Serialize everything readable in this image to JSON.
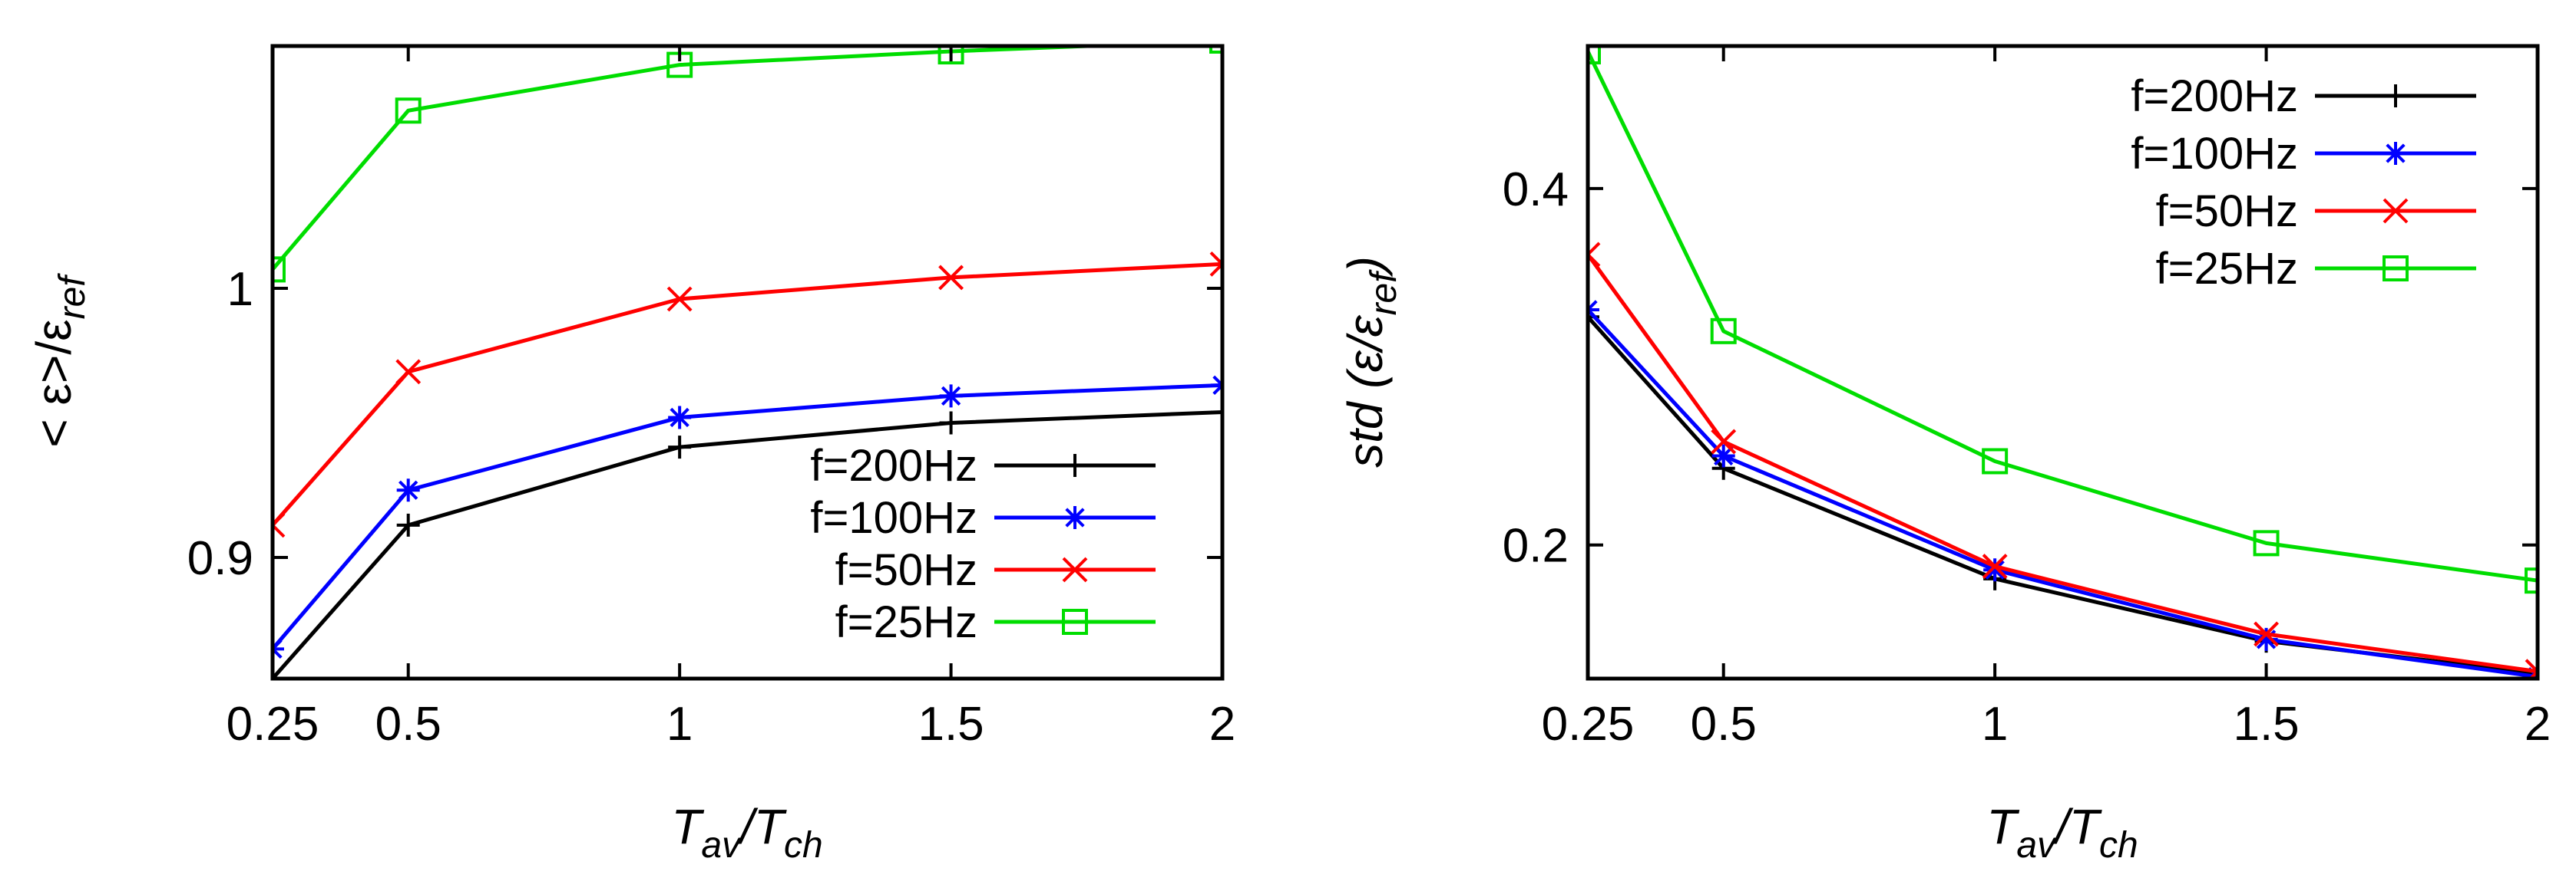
{
  "chart_data": [
    {
      "type": "line",
      "xlabel_main": "T",
      "xlabel_sub1": "av",
      "xlabel_mid": "/T",
      "xlabel_sub2": "ch",
      "ylabel_main": "< ε>/ε",
      "ylabel_sub": "ref",
      "xlim": [
        0.25,
        2
      ],
      "ylim": [
        0.855,
        1.09
      ],
      "xticks": [
        0.25,
        0.5,
        1,
        1.5,
        2
      ],
      "xtick_labels": [
        "0.25",
        "0.5",
        "1",
        "1.5",
        "2"
      ],
      "yticks": [
        0.9,
        1
      ],
      "ytick_labels": [
        "0.9",
        "1"
      ],
      "legend_position": "bottom-right",
      "series": [
        {
          "name": "f=200Hz",
          "color": "#000000",
          "marker": "plus",
          "x": [
            0.25,
            0.5,
            1,
            1.5,
            2
          ],
          "y": [
            0.855,
            0.912,
            0.941,
            0.95,
            0.954
          ]
        },
        {
          "name": "f=100Hz",
          "color": "#0000ff",
          "marker": "star",
          "x": [
            0.25,
            0.5,
            1,
            1.5,
            2
          ],
          "y": [
            0.866,
            0.925,
            0.952,
            0.96,
            0.964
          ]
        },
        {
          "name": "f=50Hz",
          "color": "#ff0000",
          "marker": "cross",
          "x": [
            0.25,
            0.5,
            1,
            1.5,
            2
          ],
          "y": [
            0.912,
            0.969,
            0.996,
            1.004,
            1.009
          ]
        },
        {
          "name": "f=25Hz",
          "color": "#00dd00",
          "marker": "square",
          "x": [
            0.25,
            0.5,
            1,
            1.5,
            2
          ],
          "y": [
            1.007,
            1.066,
            1.083,
            1.088,
            1.092
          ]
        }
      ]
    },
    {
      "type": "line",
      "xlabel_main": "T",
      "xlabel_sub1": "av",
      "xlabel_mid": "/T",
      "xlabel_sub2": "ch",
      "ylabel_main": "std (ε/ε",
      "ylabel_sub": "ref",
      "ylabel_end": ")",
      "xlim": [
        0.25,
        2
      ],
      "ylim": [
        0.125,
        0.48
      ],
      "xticks": [
        0.25,
        0.5,
        1,
        1.5,
        2
      ],
      "xtick_labels": [
        "0.25",
        "0.5",
        "1",
        "1.5",
        "2"
      ],
      "yticks": [
        0.2,
        0.4
      ],
      "ytick_labels": [
        "0.2",
        "0.4"
      ],
      "legend_position": "top-right",
      "series": [
        {
          "name": "f=200Hz",
          "color": "#000000",
          "marker": "plus",
          "x": [
            0.25,
            0.5,
            1,
            1.5,
            2
          ],
          "y": [
            0.328,
            0.243,
            0.181,
            0.146,
            0.128
          ]
        },
        {
          "name": "f=100Hz",
          "color": "#0000ff",
          "marker": "star",
          "x": [
            0.25,
            0.5,
            1,
            1.5,
            2
          ],
          "y": [
            0.332,
            0.25,
            0.186,
            0.147,
            0.126
          ]
        },
        {
          "name": "f=50Hz",
          "color": "#ff0000",
          "marker": "cross",
          "x": [
            0.25,
            0.5,
            1,
            1.5,
            2
          ],
          "y": [
            0.363,
            0.258,
            0.188,
            0.15,
            0.129
          ]
        },
        {
          "name": "f=25Hz",
          "color": "#00dd00",
          "marker": "square",
          "x": [
            0.25,
            0.5,
            1,
            1.5,
            2
          ],
          "y": [
            0.477,
            0.32,
            0.247,
            0.201,
            0.18
          ]
        }
      ]
    }
  ]
}
